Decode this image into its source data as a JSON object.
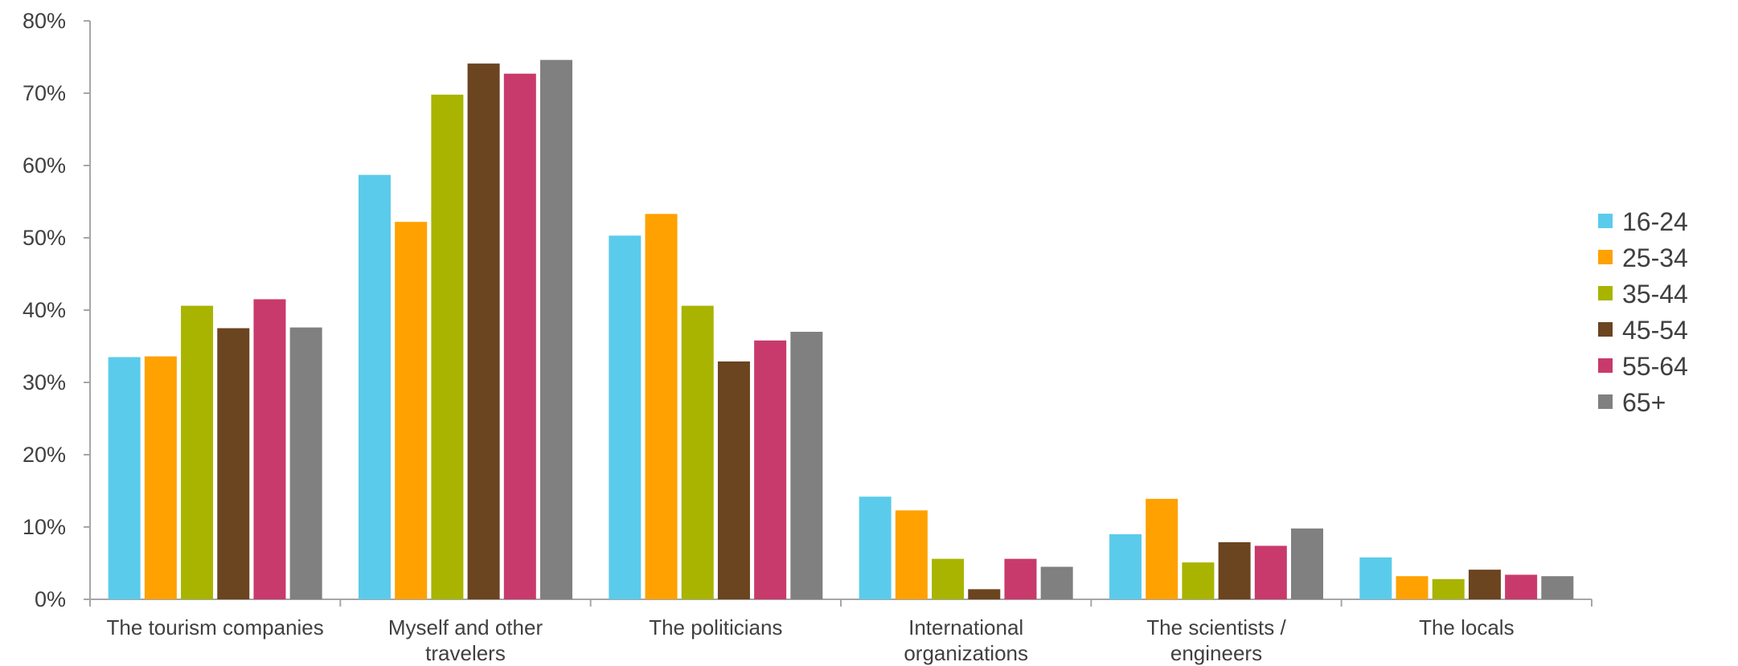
{
  "chart_data": {
    "type": "bar",
    "title": "",
    "xlabel": "",
    "ylabel": "",
    "ylim": [
      0,
      80
    ],
    "y_ticks": [
      "0%",
      "10%",
      "20%",
      "30%",
      "40%",
      "50%",
      "60%",
      "70%",
      "80%"
    ],
    "y_tick_values": [
      0,
      10,
      20,
      30,
      40,
      50,
      60,
      70,
      80
    ],
    "grid": false,
    "legend_position": "right",
    "categories": [
      [
        "The tourism companies"
      ],
      [
        "Myself and other",
        "travelers"
      ],
      [
        "The politicians"
      ],
      [
        "International",
        "organizations"
      ],
      [
        "The scientists /",
        "engineers"
      ],
      [
        "The locals"
      ]
    ],
    "series": [
      {
        "name": "16-24",
        "color": "#5BCBEB",
        "values": [
          33.5,
          58.7,
          50.3,
          14.2,
          9.0,
          5.8
        ]
      },
      {
        "name": "25-34",
        "color": "#FFA100",
        "values": [
          33.6,
          52.2,
          53.3,
          12.3,
          13.9,
          3.2
        ]
      },
      {
        "name": "35-44",
        "color": "#A8B400",
        "values": [
          40.6,
          69.8,
          40.6,
          5.6,
          5.1,
          2.8
        ]
      },
      {
        "name": "45-54",
        "color": "#6B4420",
        "values": [
          37.5,
          74.1,
          32.9,
          1.4,
          7.9,
          4.1
        ]
      },
      {
        "name": "55-64",
        "color": "#C83A6B",
        "values": [
          41.5,
          72.7,
          35.8,
          5.6,
          7.4,
          3.4
        ]
      },
      {
        "name": "65+",
        "color": "#808080",
        "values": [
          37.6,
          74.6,
          37.0,
          4.5,
          9.8,
          3.2
        ]
      }
    ]
  }
}
